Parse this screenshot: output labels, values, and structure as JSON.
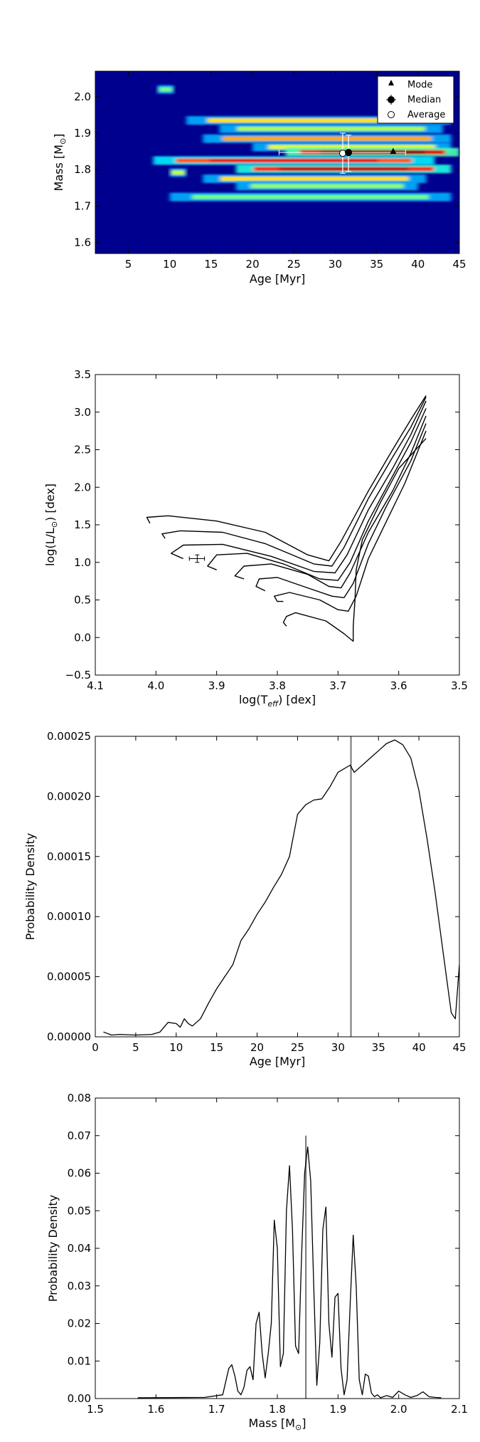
{
  "chart_data": [
    {
      "type": "heatmap",
      "xlabel": "Age [Myr]",
      "ylabel_main": "Mass [M",
      "ylabel_sub": "⊙",
      "ylabel_end": "]",
      "xlim": [
        1,
        45
      ],
      "ylim": [
        1.57,
        2.07
      ],
      "xticks": [
        5,
        10,
        15,
        20,
        25,
        30,
        35,
        40,
        45
      ],
      "yticks": [
        1.6,
        1.7,
        1.8,
        1.9,
        2.0
      ],
      "ytick_labels": [
        "1.6",
        "1.7",
        "1.8",
        "1.9",
        "2.0"
      ],
      "colormap": "jet",
      "bands": [
        {
          "mass": 1.935,
          "xmin": 12,
          "xmax": 44,
          "level": 0.55
        },
        {
          "mass": 1.912,
          "xmin": 16,
          "xmax": 43,
          "level": 0.35
        },
        {
          "mass": 1.885,
          "xmin": 14,
          "xmax": 44,
          "level": 0.65
        },
        {
          "mass": 1.862,
          "xmin": 20,
          "xmax": 44,
          "level": 0.45
        },
        {
          "mass": 1.848,
          "xmin": 24,
          "xmax": 45,
          "level": 1.0
        },
        {
          "mass": 1.825,
          "xmin": 8,
          "xmax": 42,
          "level": 0.8
        },
        {
          "mass": 1.802,
          "xmin": 18,
          "xmax": 44,
          "level": 0.9
        },
        {
          "mass": 1.775,
          "xmin": 14,
          "xmax": 41,
          "level": 0.55
        },
        {
          "mass": 1.755,
          "xmin": 18,
          "xmax": 40,
          "level": 0.3
        },
        {
          "mass": 1.725,
          "xmin": 10,
          "xmax": 44,
          "level": 0.25
        },
        {
          "mass": 1.792,
          "xmin": 10,
          "xmax": 12,
          "level": 0.4
        },
        {
          "mass": 2.02,
          "xmin": 8.5,
          "xmax": 10.5,
          "level": 0.25
        }
      ],
      "markers": {
        "mode": {
          "x": 37,
          "y": 1.85
        },
        "median": {
          "x": 31.6,
          "y": 1.847,
          "xerr": [
            23.2,
            38.5
          ],
          "yerr": [
            1.795,
            1.895
          ]
        },
        "average": {
          "x": 30.9,
          "y": 1.845,
          "yerr": [
            1.79,
            1.9
          ]
        }
      },
      "legend": [
        "Mode",
        "Median",
        "Average"
      ],
      "legend_position": "top-right"
    },
    {
      "type": "line",
      "xlabel_main": "log(T",
      "xlabel_sub": "eff",
      "xlabel_end": ") [dex]",
      "ylabel_main": "log(L/L",
      "ylabel_sub": "⊙",
      "ylabel_end": ") [dex]",
      "xlim": [
        4.1,
        3.5
      ],
      "ylim": [
        -0.5,
        3.5
      ],
      "xticks": [
        4.1,
        4.0,
        3.9,
        3.8,
        3.7,
        3.6,
        3.5
      ],
      "xtick_labels": [
        "4.1",
        "4.0",
        "3.9",
        "3.8",
        "3.7",
        "3.6",
        "3.5"
      ],
      "yticks": [
        -0.5,
        0.0,
        0.5,
        1.0,
        1.5,
        2.0,
        2.5,
        3.0,
        3.5
      ],
      "ytick_labels": [
        "−0.5",
        "0.0",
        "0.5",
        "1.0",
        "1.5",
        "2.0",
        "2.5",
        "3.0",
        "3.5"
      ],
      "series": [
        {
          "values": [
            [
              3.785,
              0.15
            ],
            [
              3.79,
              0.2
            ],
            [
              3.785,
              0.28
            ],
            [
              3.77,
              0.33
            ],
            [
              3.72,
              0.22
            ],
            [
              3.69,
              0.05
            ],
            [
              3.675,
              -0.05
            ],
            [
              3.675,
              0.15
            ],
            [
              3.672,
              0.5
            ],
            [
              3.67,
              0.9
            ],
            [
              3.66,
              1.3
            ],
            [
              3.63,
              1.8
            ],
            [
              3.6,
              2.25
            ],
            [
              3.555,
              2.65
            ]
          ]
        },
        {
          "values": [
            [
              3.79,
              0.48
            ],
            [
              3.8,
              0.48
            ],
            [
              3.805,
              0.55
            ],
            [
              3.78,
              0.6
            ],
            [
              3.73,
              0.5
            ],
            [
              3.7,
              0.37
            ],
            [
              3.683,
              0.35
            ],
            [
              3.67,
              0.55
            ],
            [
              3.65,
              1.05
            ],
            [
              3.62,
              1.55
            ],
            [
              3.59,
              2.05
            ],
            [
              3.555,
              2.75
            ]
          ]
        },
        {
          "values": [
            [
              3.82,
              0.62
            ],
            [
              3.835,
              0.68
            ],
            [
              3.83,
              0.78
            ],
            [
              3.8,
              0.8
            ],
            [
              3.75,
              0.66
            ],
            [
              3.71,
              0.55
            ],
            [
              3.69,
              0.53
            ],
            [
              3.675,
              0.72
            ],
            [
              3.65,
              1.25
            ],
            [
              3.62,
              1.75
            ],
            [
              3.58,
              2.35
            ],
            [
              3.555,
              2.85
            ]
          ]
        },
        {
          "values": [
            [
              3.855,
              0.78
            ],
            [
              3.87,
              0.82
            ],
            [
              3.855,
              0.95
            ],
            [
              3.81,
              0.98
            ],
            [
              3.75,
              0.84
            ],
            [
              3.715,
              0.68
            ],
            [
              3.695,
              0.66
            ],
            [
              3.68,
              0.86
            ],
            [
              3.65,
              1.4
            ],
            [
              3.61,
              1.95
            ],
            [
              3.58,
              2.45
            ],
            [
              3.555,
              2.95
            ]
          ]
        },
        {
          "values": [
            [
              3.9,
              0.9
            ],
            [
              3.915,
              0.95
            ],
            [
              3.9,
              1.1
            ],
            [
              3.85,
              1.12
            ],
            [
              3.79,
              0.98
            ],
            [
              3.73,
              0.78
            ],
            [
              3.7,
              0.76
            ],
            [
              3.68,
              1.0
            ],
            [
              3.65,
              1.55
            ],
            [
              3.62,
              2.0
            ],
            [
              3.58,
              2.6
            ],
            [
              3.555,
              3.05
            ]
          ]
        },
        {
          "values": [
            [
              3.955,
              1.05
            ],
            [
              3.975,
              1.12
            ],
            [
              3.955,
              1.23
            ],
            [
              3.89,
              1.24
            ],
            [
              3.81,
              1.08
            ],
            [
              3.74,
              0.88
            ],
            [
              3.705,
              0.86
            ],
            [
              3.685,
              1.1
            ],
            [
              3.65,
              1.7
            ],
            [
              3.61,
              2.25
            ],
            [
              3.58,
              2.7
            ],
            [
              3.555,
              3.15
            ]
          ]
        },
        {
          "values": [
            [
              3.985,
              1.32
            ],
            [
              3.99,
              1.38
            ],
            [
              3.96,
              1.42
            ],
            [
              3.89,
              1.4
            ],
            [
              3.82,
              1.25
            ],
            [
              3.74,
              0.98
            ],
            [
              3.71,
              0.95
            ],
            [
              3.69,
              1.2
            ],
            [
              3.65,
              1.85
            ],
            [
              3.61,
              2.4
            ],
            [
              3.58,
              2.8
            ],
            [
              3.555,
              3.2
            ]
          ]
        },
        {
          "values": [
            [
              4.01,
              1.52
            ],
            [
              4.015,
              1.6
            ],
            [
              3.98,
              1.62
            ],
            [
              3.9,
              1.55
            ],
            [
              3.82,
              1.4
            ],
            [
              3.75,
              1.1
            ],
            [
              3.715,
              1.02
            ],
            [
              3.695,
              1.28
            ],
            [
              3.65,
              1.95
            ],
            [
              3.61,
              2.5
            ],
            [
              3.58,
              2.9
            ],
            [
              3.555,
              3.22
            ]
          ]
        }
      ],
      "point": {
        "x": 3.932,
        "y": 1.05,
        "xerr": [
          3.92,
          3.945
        ],
        "yerr": [
          1.0,
          1.1
        ]
      }
    },
    {
      "type": "line",
      "xlabel": "Age [Myr]",
      "ylabel": "Probability Density",
      "xlim": [
        0,
        45
      ],
      "ylim": [
        0,
        0.00025
      ],
      "xticks": [
        0,
        5,
        10,
        15,
        20,
        25,
        30,
        35,
        40,
        45
      ],
      "yticks": [
        0,
        5e-05,
        0.0001,
        0.00015,
        0.0002,
        0.00025
      ],
      "ytick_labels": [
        "0.00000",
        "0.00005",
        "0.00010",
        "0.00015",
        "0.00020",
        "0.00025"
      ],
      "values": [
        [
          1,
          4e-06
        ],
        [
          2,
          1.5e-06
        ],
        [
          3,
          2e-06
        ],
        [
          5,
          1.5e-06
        ],
        [
          7,
          2e-06
        ],
        [
          8,
          4e-06
        ],
        [
          9,
          1.2e-05
        ],
        [
          10,
          1.1e-05
        ],
        [
          10.5,
          8e-06
        ],
        [
          11,
          1.5e-05
        ],
        [
          11.5,
          1.1e-05
        ],
        [
          12,
          9e-06
        ],
        [
          13,
          1.5e-05
        ],
        [
          14,
          2.8e-05
        ],
        [
          15,
          4e-05
        ],
        [
          16,
          5e-05
        ],
        [
          17,
          6e-05
        ],
        [
          17.5,
          7e-05
        ],
        [
          18,
          8e-05
        ],
        [
          19,
          9e-05
        ],
        [
          20,
          0.000102
        ],
        [
          21,
          0.000112
        ],
        [
          22,
          0.000124
        ],
        [
          23,
          0.000135
        ],
        [
          24,
          0.00015
        ],
        [
          25,
          0.000185
        ],
        [
          26,
          0.000193
        ],
        [
          27,
          0.000197
        ],
        [
          28,
          0.000198
        ],
        [
          29,
          0.000208
        ],
        [
          30,
          0.00022
        ],
        [
          31.5,
          0.000226
        ],
        [
          32,
          0.00022
        ],
        [
          33,
          0.000226
        ],
        [
          34,
          0.000232
        ],
        [
          35,
          0.000238
        ],
        [
          36,
          0.000244
        ],
        [
          37,
          0.000247
        ],
        [
          38,
          0.000243
        ],
        [
          39,
          0.000232
        ],
        [
          40,
          0.000205
        ],
        [
          41,
          0.000165
        ],
        [
          42,
          0.00012
        ],
        [
          43,
          7e-05
        ],
        [
          44,
          2e-05
        ],
        [
          44.5,
          1.5e-05
        ],
        [
          45,
          6e-05
        ]
      ],
      "vline": 31.6
    },
    {
      "type": "line",
      "xlabel_main": "Mass [M",
      "xlabel_sub": "⊙",
      "xlabel_end": "]",
      "ylabel": "Probability Density",
      "xlim": [
        1.5,
        2.1
      ],
      "ylim": [
        0,
        0.08
      ],
      "xticks": [
        1.5,
        1.6,
        1.7,
        1.8,
        1.9,
        2.0,
        2.1
      ],
      "xtick_labels": [
        "1.5",
        "1.6",
        "1.7",
        "1.8",
        "1.9",
        "2.0",
        "2.1"
      ],
      "yticks": [
        0,
        0.01,
        0.02,
        0.03,
        0.04,
        0.05,
        0.06,
        0.07,
        0.08
      ],
      "ytick_labels": [
        "0.00",
        "0.01",
        "0.02",
        "0.03",
        "0.04",
        "0.05",
        "0.06",
        "0.07",
        "0.08"
      ],
      "values": [
        [
          1.57,
          0.0002
        ],
        [
          1.68,
          0.0003
        ],
        [
          1.71,
          0.001
        ],
        [
          1.72,
          0.008
        ],
        [
          1.725,
          0.009
        ],
        [
          1.73,
          0.006
        ],
        [
          1.735,
          0.002
        ],
        [
          1.74,
          0.001
        ],
        [
          1.745,
          0.003
        ],
        [
          1.75,
          0.0075
        ],
        [
          1.755,
          0.0085
        ],
        [
          1.76,
          0.005
        ],
        [
          1.765,
          0.02
        ],
        [
          1.77,
          0.023
        ],
        [
          1.775,
          0.012
        ],
        [
          1.78,
          0.0055
        ],
        [
          1.785,
          0.012
        ],
        [
          1.79,
          0.02
        ],
        [
          1.795,
          0.0475
        ],
        [
          1.8,
          0.04
        ],
        [
          1.805,
          0.0085
        ],
        [
          1.81,
          0.012
        ],
        [
          1.815,
          0.05
        ],
        [
          1.82,
          0.062
        ],
        [
          1.825,
          0.045
        ],
        [
          1.83,
          0.014
        ],
        [
          1.835,
          0.012
        ],
        [
          1.84,
          0.038
        ],
        [
          1.845,
          0.06
        ],
        [
          1.85,
          0.067
        ],
        [
          1.855,
          0.058
        ],
        [
          1.86,
          0.03
        ],
        [
          1.865,
          0.0035
        ],
        [
          1.87,
          0.015
        ],
        [
          1.875,
          0.045
        ],
        [
          1.88,
          0.051
        ],
        [
          1.885,
          0.02
        ],
        [
          1.89,
          0.011
        ],
        [
          1.895,
          0.027
        ],
        [
          1.9,
          0.028
        ],
        [
          1.905,
          0.008
        ],
        [
          1.91,
          0.001
        ],
        [
          1.915,
          0.005
        ],
        [
          1.92,
          0.025
        ],
        [
          1.925,
          0.0435
        ],
        [
          1.93,
          0.03
        ],
        [
          1.935,
          0.005
        ],
        [
          1.94,
          0.001
        ],
        [
          1.945,
          0.0065
        ],
        [
          1.95,
          0.006
        ],
        [
          1.955,
          0.0015
        ],
        [
          1.96,
          0.0005
        ],
        [
          1.965,
          0.001
        ],
        [
          1.97,
          0.0002
        ],
        [
          1.98,
          0.0008
        ],
        [
          1.99,
          0.0003
        ],
        [
          2.0,
          0.002
        ],
        [
          2.01,
          0.001
        ],
        [
          2.02,
          0.0003
        ],
        [
          2.03,
          0.0008
        ],
        [
          2.04,
          0.0018
        ],
        [
          2.05,
          0.0005
        ],
        [
          2.06,
          0.0003
        ],
        [
          2.07,
          0.0002
        ]
      ],
      "vline": 1.847
    }
  ]
}
